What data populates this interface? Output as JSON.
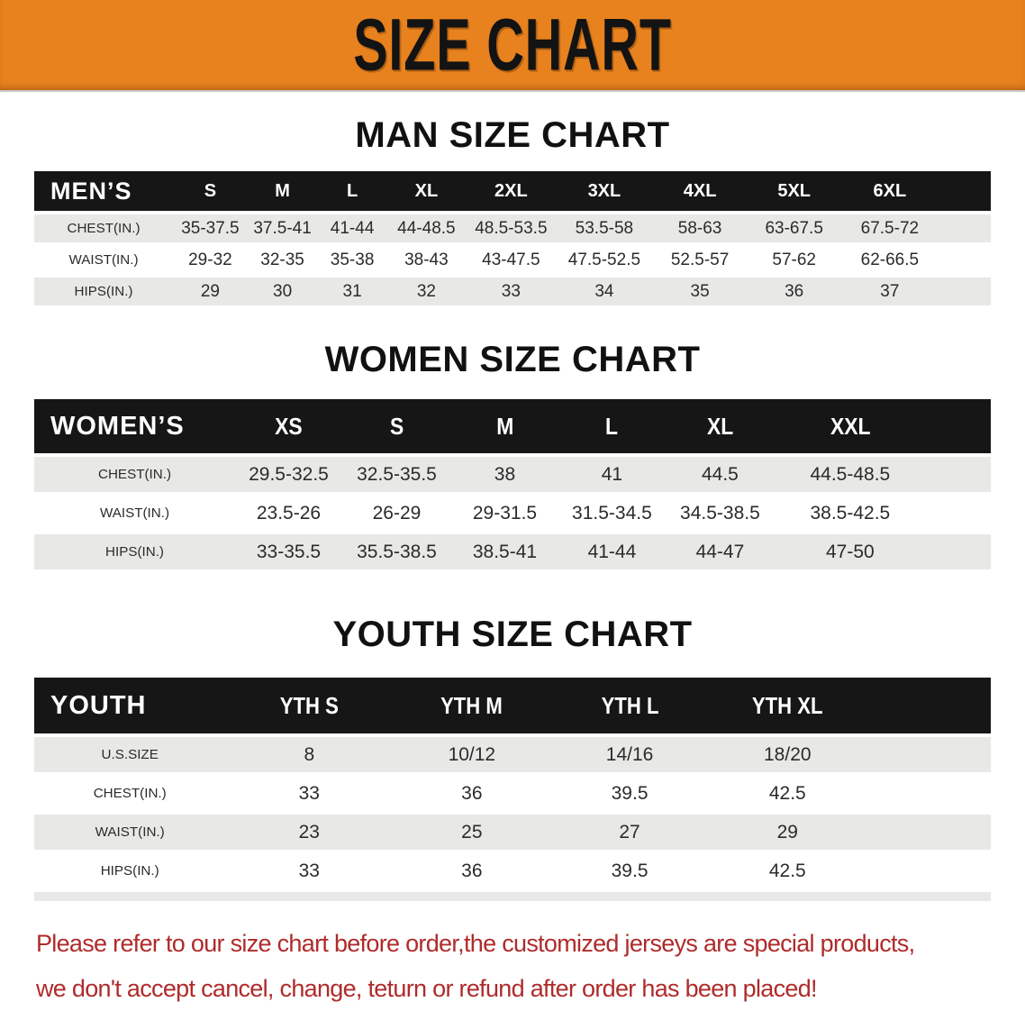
{
  "banner": {
    "title": "SIZE CHART"
  },
  "sections": [
    {
      "title": "MAN SIZE CHART",
      "header_label": "MEN’S",
      "columns": [
        "S",
        "M",
        "L",
        "XL",
        "2XL",
        "3XL",
        "4XL",
        "5XL",
        "6XL"
      ],
      "rows": [
        {
          "label": "CHEST(IN.)",
          "values": [
            "35-37.5",
            "37.5-41",
            "41-44",
            "44-48.5",
            "48.5-53.5",
            "53.5-58",
            "58-63",
            "63-67.5",
            "67.5-72"
          ]
        },
        {
          "label": "WAIST(IN.)",
          "values": [
            "29-32",
            "32-35",
            "35-38",
            "38-43",
            "43-47.5",
            "47.5-52.5",
            "52.5-57",
            "57-62",
            "62-66.5"
          ]
        },
        {
          "label": "HIPS(IN.)",
          "values": [
            "29",
            "30",
            "31",
            "32",
            "33",
            "34",
            "35",
            "36",
            "37"
          ]
        }
      ]
    },
    {
      "title": "WOMEN SIZE CHART",
      "header_label": "WOMEN’S",
      "columns": [
        "XS",
        "S",
        "M",
        "L",
        "XL",
        "XXL"
      ],
      "rows": [
        {
          "label": "CHEST(IN.)",
          "values": [
            "29.5-32.5",
            "32.5-35.5",
            "38",
            "41",
            "44.5",
            "44.5-48.5"
          ]
        },
        {
          "label": "WAIST(IN.)",
          "values": [
            "23.5-26",
            "26-29",
            "29-31.5",
            "31.5-34.5",
            "34.5-38.5",
            "38.5-42.5"
          ]
        },
        {
          "label": "HIPS(IN.)",
          "values": [
            "33-35.5",
            "35.5-38.5",
            "38.5-41",
            "41-44",
            "44-47",
            "47-50"
          ]
        }
      ]
    },
    {
      "title": "YOUTH SIZE CHART",
      "header_label": "YOUTH",
      "columns": [
        "YTH S",
        "YTH M",
        "YTH L",
        "YTH XL"
      ],
      "rows": [
        {
          "label": "U.S.SIZE",
          "values": [
            "8",
            "10/12",
            "14/16",
            "18/20"
          ]
        },
        {
          "label": "CHEST(IN.)",
          "values": [
            "33",
            "36",
            "39.5",
            "42.5"
          ]
        },
        {
          "label": "WAIST(IN.)",
          "values": [
            "23",
            "25",
            "27",
            "29"
          ]
        },
        {
          "label": "HIPS(IN.)",
          "values": [
            "33",
            "36",
            "39.5",
            "42.5"
          ]
        }
      ]
    }
  ],
  "footer": {
    "line1": "Please refer to our size chart before order,the customized jerseys are special products,",
    "line2": "we don't accept cancel, change, teturn or refund after order has been placed!"
  },
  "colors": {
    "page_bg": "#FFFFFF",
    "banner_bg": "#E8821E",
    "banner_text": "#131313",
    "header_bg": "#161616",
    "header_text": "#FFFFFF",
    "row_alt_bg": "#E8E8E6",
    "row_bg": "#FFFFFF",
    "body_text": "#2B2B2B",
    "title_text": "#111111",
    "disclaimer_text": "#AF2B2B"
  }
}
